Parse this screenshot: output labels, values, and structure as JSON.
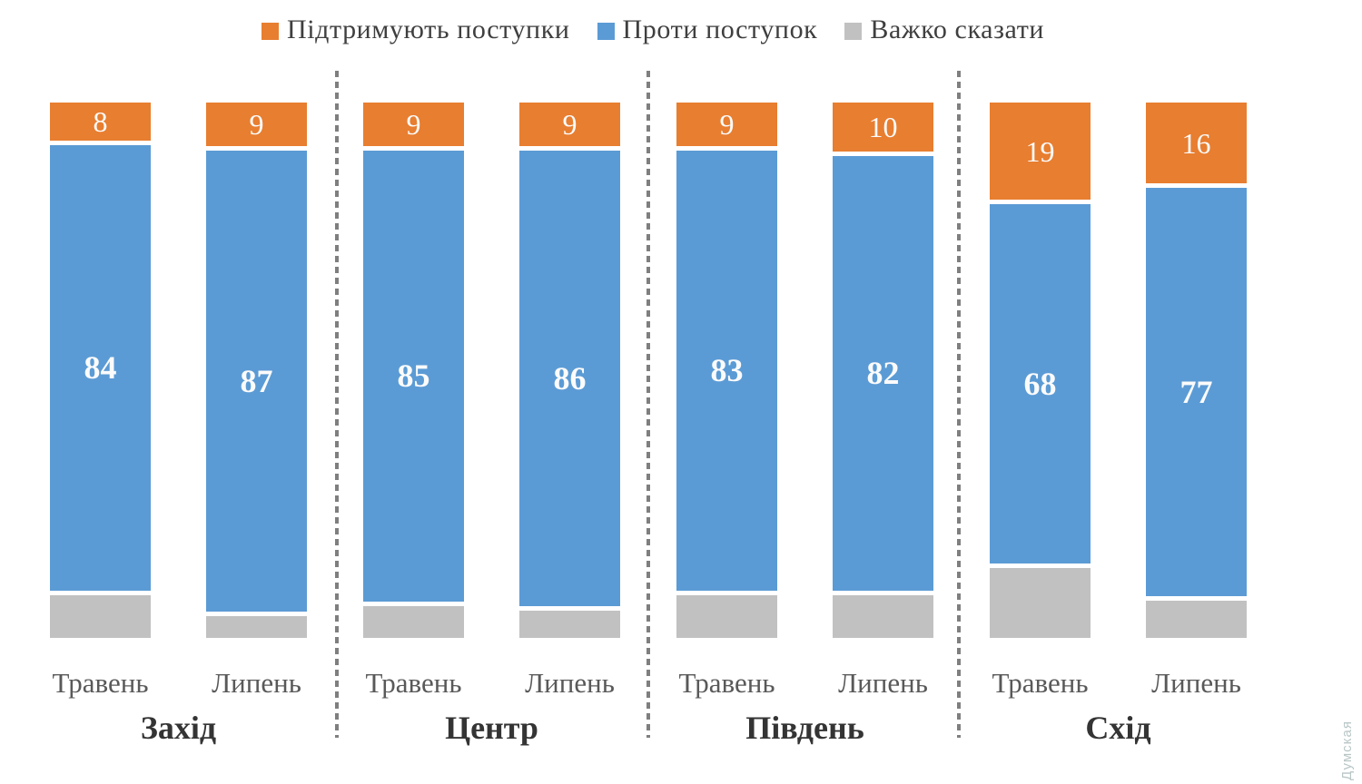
{
  "legend": {
    "items": [
      {
        "id": "support",
        "label": "Підтримують поступки",
        "color": "#E87E30"
      },
      {
        "id": "against",
        "label": "Проти поступок",
        "color": "#5B9BD5"
      },
      {
        "id": "undecided",
        "label": "Важко сказати",
        "color": "#C1C1C1"
      }
    ]
  },
  "watermark": {
    "text": "Думская",
    "color": "#B9C6C6"
  },
  "chart_data": {
    "type": "bar",
    "stacked": true,
    "orientation": "vertical",
    "units": "percent",
    "ylim": [
      0,
      100
    ],
    "grid": false,
    "axes_hidden": true,
    "legend_position": "top",
    "series_names": [
      "Підтримують поступки",
      "Проти поступок",
      "Важко сказати"
    ],
    "value_labels_shown_for": [
      "Підтримують поступки",
      "Проти поступок"
    ],
    "undecided_values_estimated_from_heights": true,
    "groups": [
      {
        "region": "Захід",
        "bars": [
          {
            "period": "Травень",
            "support": 8,
            "against": 84,
            "undecided": 8
          },
          {
            "period": "Липень",
            "support": 9,
            "against": 87,
            "undecided": 4
          }
        ]
      },
      {
        "region": "Центр",
        "bars": [
          {
            "period": "Травень",
            "support": 9,
            "against": 85,
            "undecided": 6
          },
          {
            "period": "Липень",
            "support": 9,
            "against": 86,
            "undecided": 5
          }
        ]
      },
      {
        "region": "Південь",
        "bars": [
          {
            "period": "Травень",
            "support": 9,
            "against": 83,
            "undecided": 8
          },
          {
            "period": "Липень",
            "support": 10,
            "against": 82,
            "undecided": 8
          }
        ]
      },
      {
        "region": "Схід",
        "bars": [
          {
            "period": "Травень",
            "support": 19,
            "against": 68,
            "undecided": 13
          },
          {
            "period": "Липень",
            "support": 16,
            "against": 77,
            "undecided": 7
          }
        ]
      }
    ]
  }
}
